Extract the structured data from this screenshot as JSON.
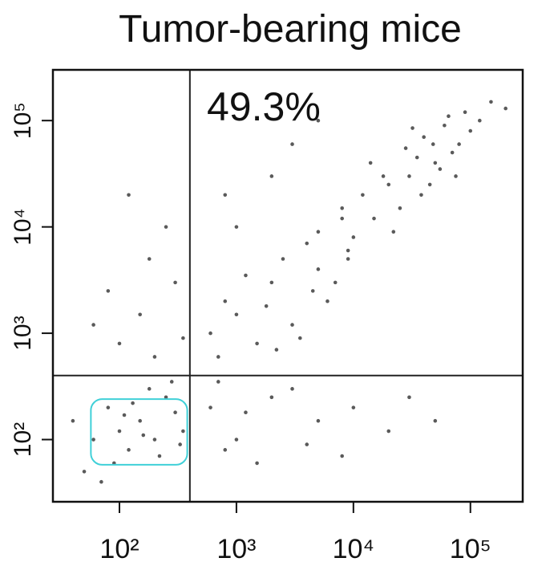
{
  "chart_data": {
    "type": "scatter",
    "title": "Tumor-bearing mice",
    "annotation": "49.3%",
    "xlog": true,
    "ylog": true,
    "xlim": [
      27,
      280000
    ],
    "ylim": [
      26,
      300000
    ],
    "xticks": [
      {
        "value": 100,
        "label": "10²"
      },
      {
        "value": 1000,
        "label": "10³"
      },
      {
        "value": 10000,
        "label": "10⁴"
      },
      {
        "value": 100000,
        "label": "10⁵"
      }
    ],
    "yticks": [
      {
        "value": 100,
        "label": "10²"
      },
      {
        "value": 1000,
        "label": "10³"
      },
      {
        "value": 10000,
        "label": "10⁴"
      },
      {
        "value": 100000,
        "label": "10⁵"
      }
    ],
    "quadrant_x": 400,
    "quadrant_y": 400,
    "gate": {
      "x": [
        57,
        380
      ],
      "y": [
        58,
        240
      ],
      "color": "#40d0d8"
    },
    "series": [
      {
        "color": "#5a5a5a",
        "x": [
          30000,
          50000,
          20000,
          80000,
          15000,
          40000,
          60000,
          100000,
          25000,
          12000,
          70000,
          35000,
          45000,
          18000,
          90000,
          120000,
          10000,
          8000,
          55000,
          28000,
          150000,
          65000,
          22000,
          38000,
          14000,
          200000,
          75000,
          32000,
          9000,
          48000,
          1000,
          2000,
          3000,
          5000,
          800,
          1500,
          4000,
          7000,
          600,
          2500,
          6000,
          1200,
          3500,
          9000,
          700,
          1800,
          5000,
          2200,
          8000,
          4500,
          600,
          1000,
          2000,
          5000,
          800,
          3000,
          10000,
          1500,
          20000,
          700,
          4000,
          30000,
          1200,
          8000,
          50000,
          150,
          100,
          200,
          80,
          250,
          120,
          300,
          60,
          180,
          90,
          350,
          40,
          220,
          130,
          70,
          280,
          110,
          50,
          330,
          160,
          200,
          150,
          300,
          100,
          250,
          80,
          350,
          180,
          120,
          60,
          2000,
          1000,
          3000,
          800,
          5000
        ],
        "y": [
          30000,
          40000,
          25000,
          60000,
          12000,
          70000,
          90000,
          80000,
          15000,
          20000,
          50000,
          45000,
          25000,
          30000,
          120000,
          100000,
          8000,
          15000,
          35000,
          55000,
          150000,
          110000,
          9000,
          20000,
          40000,
          130000,
          30000,
          85000,
          6000,
          60000,
          1500,
          3000,
          1200,
          4000,
          2000,
          800,
          7000,
          3000,
          1000,
          5000,
          2000,
          3500,
          900,
          5000,
          600,
          1800,
          9000,
          700,
          12000,
          2500,
          200,
          100,
          250,
          150,
          80,
          300,
          200,
          60,
          120,
          350,
          90,
          250,
          180,
          70,
          150,
          150,
          120,
          100,
          200,
          250,
          80,
          180,
          100,
          300,
          60,
          120,
          150,
          70,
          220,
          40,
          350,
          170,
          50,
          90,
          110,
          600,
          1500,
          3000,
          800,
          10000,
          2500,
          900,
          5000,
          20000,
          1200,
          30000,
          10000,
          60000,
          20000,
          100000
        ]
      }
    ]
  }
}
